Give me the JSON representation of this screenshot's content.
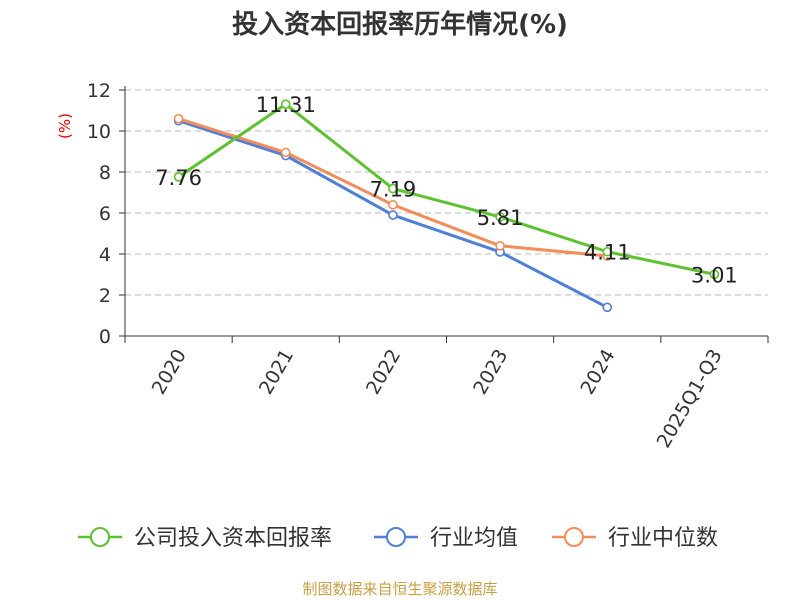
{
  "chart_data": {
    "type": "line",
    "title": "投入资本回报率历年情况(%)",
    "ylabel": "(%)",
    "xlabel": "",
    "categories": [
      "2020",
      "2021",
      "2022",
      "2023",
      "2024",
      "2025Q1-Q3"
    ],
    "ylim": [
      0,
      12
    ],
    "yticks": [
      0,
      2,
      4,
      6,
      8,
      10,
      12
    ],
    "grid": true,
    "legend_position": "bottom",
    "series": [
      {
        "name": "公司投入资本回报率",
        "color": "#5ec12f",
        "values": [
          7.76,
          11.31,
          7.19,
          5.81,
          4.11,
          3.01
        ],
        "labels": [
          "7.76",
          "11.31",
          "7.19",
          "5.81",
          "4.11",
          "3.01"
        ]
      },
      {
        "name": "行业均值",
        "color": "#4f7fd6",
        "values": [
          10.5,
          8.8,
          5.9,
          4.1,
          1.4,
          null
        ]
      },
      {
        "name": "行业中位数",
        "color": "#f28e5c",
        "values": [
          10.6,
          8.95,
          6.4,
          4.4,
          3.9,
          null
        ]
      }
    ]
  },
  "source": "制图数据来自恒生聚源数据库"
}
